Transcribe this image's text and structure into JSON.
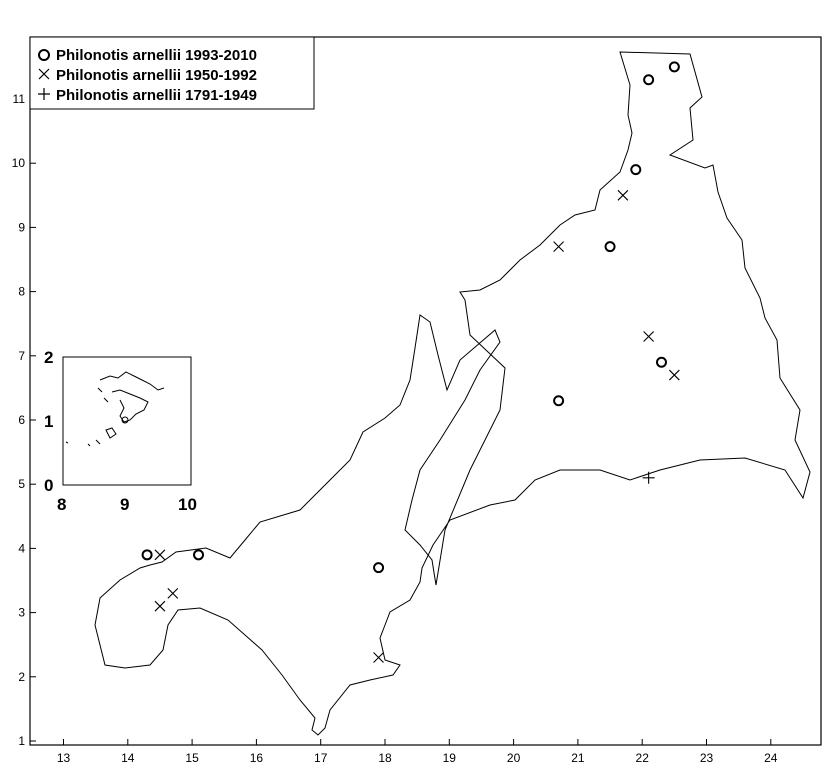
{
  "chart_data": {
    "type": "scatter",
    "xlim": [
      12.5,
      24.7
    ],
    "ylim": [
      0.9,
      11.9
    ],
    "x_ticks": [
      "13",
      "14",
      "15",
      "16",
      "17",
      "18",
      "19",
      "20",
      "21",
      "22",
      "23",
      "24"
    ],
    "y_ticks": [
      "1",
      "2",
      "3",
      "4",
      "5",
      "6",
      "7",
      "8",
      "9",
      "10",
      "11"
    ],
    "legend_position": "top-left",
    "series": [
      {
        "name": "Philonotis arnellii 1993-2010",
        "marker": "circle",
        "points": [
          [
            14.3,
            3.9
          ],
          [
            15.1,
            3.9
          ],
          [
            17.9,
            3.7
          ],
          [
            20.7,
            6.3
          ],
          [
            21.5,
            8.7
          ],
          [
            21.9,
            9.9
          ],
          [
            22.1,
            11.3
          ],
          [
            22.5,
            11.5
          ],
          [
            22.3,
            6.9
          ]
        ]
      },
      {
        "name": "Philonotis arnellii 1950-1992",
        "marker": "x",
        "points": [
          [
            14.5,
            3.9
          ],
          [
            14.5,
            3.1
          ],
          [
            14.7,
            3.3
          ],
          [
            17.9,
            2.3
          ],
          [
            20.7,
            8.7
          ],
          [
            21.7,
            9.5
          ],
          [
            22.1,
            7.3
          ],
          [
            22.5,
            6.7
          ]
        ]
      },
      {
        "name": "Philonotis arnellii 1791-1949",
        "marker": "plus",
        "points": [
          [
            22.1,
            5.1
          ]
        ]
      }
    ],
    "inset": {
      "x_ticks": [
        "8",
        "9",
        "10"
      ],
      "y_ticks": [
        "0",
        "1",
        "2"
      ]
    }
  }
}
